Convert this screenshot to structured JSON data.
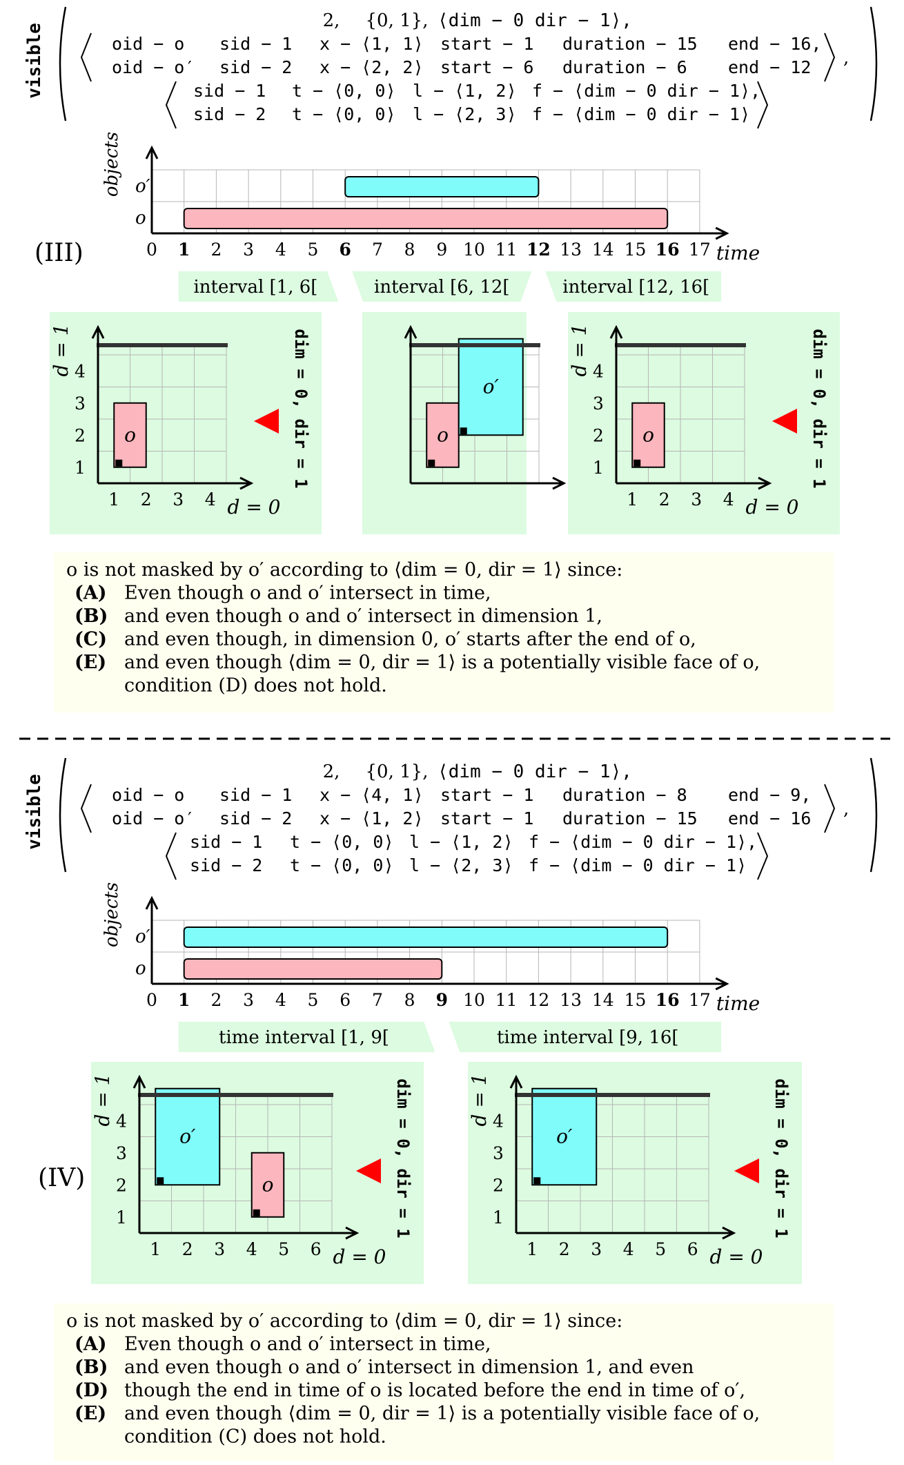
{
  "colors": {
    "o": "#fcb6bd",
    "o_prime": "#80fdfb",
    "green_bg": "#dcfbe0",
    "explanation_bg": "#fffff0",
    "arrow": "#ff0000",
    "grid": "#b5b5b5"
  },
  "panels": [
    {
      "id": "III",
      "label": "(III)",
      "constraint": {
        "keyword": "visible",
        "header": {
          "k": "2,",
          "dims": "{0, 1},",
          "face": "⟨dim − 0 dir − 1⟩,"
        },
        "objects": [
          {
            "oid": "oid − o",
            "sid": "sid − 1",
            "x": "x − ⟨1, 1⟩",
            "start": "start − 1",
            "duration": "duration − 15",
            "end": "end − 16,"
          },
          {
            "oid": "oid − o′",
            "sid": "sid − 2",
            "x": "x − ⟨2, 2⟩",
            "start": "start − 6",
            "duration": "duration − 6",
            "end": "end − 12"
          }
        ],
        "shapes": [
          {
            "sid": "sid − 1",
            "t": "t − ⟨0, 0⟩",
            "l": "l − ⟨1, 2⟩",
            "f": "f − ⟨dim − 0 dir − 1⟩,"
          },
          {
            "sid": "sid − 2",
            "t": "t − ⟨0, 0⟩",
            "l": "l − ⟨2, 3⟩",
            "f": "f − ⟨dim − 0 dir − 1⟩"
          }
        ],
        "trailing_comma": ","
      },
      "timeline": {
        "ylabel": "objects",
        "xlabel": "time",
        "ticks": [
          "0",
          "1",
          "2",
          "3",
          "4",
          "5",
          "6",
          "7",
          "8",
          "9",
          "10",
          "11",
          "12",
          "13",
          "14",
          "15",
          "16",
          "17"
        ],
        "bold_ticks": [
          1,
          6,
          12,
          16
        ],
        "rows": [
          {
            "label": "o",
            "start": 1,
            "end": 16,
            "object": "o"
          },
          {
            "label": "o′",
            "start": 6,
            "end": 12,
            "object": "o_prime"
          }
        ],
        "intervals": [
          {
            "label": "interval [1, 6[",
            "from": 1,
            "to": 6
          },
          {
            "label": "interval [6, 12[",
            "from": 6,
            "to": 12
          },
          {
            "label": "interval [12, 16[",
            "from": 12,
            "to": 16
          }
        ]
      },
      "grids": [
        {
          "xlabel": "d = 0",
          "ylabel": "d = 1",
          "xticks": [
            "1",
            "2",
            "3",
            "4"
          ],
          "yticks": [
            "1",
            "2",
            "3",
            "4"
          ],
          "side_label": "dim = 0, dir = 1",
          "show_arrow": true,
          "rects": [
            {
              "label": "o",
              "x": 1,
              "y": 1,
              "w": 1,
              "h": 2,
              "object": "o"
            }
          ]
        },
        {
          "xlabel": "",
          "ylabel": "",
          "xticks": [],
          "yticks": [],
          "side_label": "",
          "show_arrow": false,
          "rects": [
            {
              "label": "o",
              "x": 1,
              "y": 1,
              "w": 1,
              "h": 2,
              "object": "o"
            },
            {
              "label": "o′",
              "x": 2,
              "y": 2,
              "w": 2,
              "h": 3,
              "object": "o_prime"
            }
          ]
        },
        {
          "xlabel": "d = 0",
          "ylabel": "d = 1",
          "xticks": [
            "1",
            "2",
            "3",
            "4"
          ],
          "yticks": [
            "1",
            "2",
            "3",
            "4"
          ],
          "side_label": "dim = 0, dir = 1",
          "show_arrow": true,
          "rects": [
            {
              "label": "o",
              "x": 1,
              "y": 1,
              "w": 1,
              "h": 2,
              "object": "o"
            }
          ]
        }
      ],
      "explanation": {
        "intro": "o is not masked by o′ according to ⟨dim = 0, dir = 1⟩ since:",
        "items": [
          {
            "tag": "(A)",
            "text": "Even though o and o′ intersect in time,"
          },
          {
            "tag": "(B)",
            "text": "and even though o and o′ intersect in dimension 1,"
          },
          {
            "tag": "(C)",
            "text": "and even though, in dimension 0, o′ starts after the end of o,"
          },
          {
            "tag": "(E)",
            "text": "and even though ⟨dim = 0, dir = 1⟩ is a potentially visible face of o,"
          },
          {
            "tag": "",
            "text": "condition (D) does not hold."
          }
        ]
      }
    },
    {
      "id": "IV",
      "label": "(IV)",
      "constraint": {
        "keyword": "visible",
        "header": {
          "k": "2,",
          "dims": "{0, 1},",
          "face": "⟨dim − 0 dir − 1⟩,"
        },
        "objects": [
          {
            "oid": "oid − o",
            "sid": "sid − 1",
            "x": "x − ⟨4, 1⟩",
            "start": "start − 1",
            "duration": "duration − 8",
            "end": "end − 9,"
          },
          {
            "oid": "oid − o′",
            "sid": "sid − 2",
            "x": "x − ⟨1, 2⟩",
            "start": "start − 1",
            "duration": "duration − 15",
            "end": "end − 16"
          }
        ],
        "shapes": [
          {
            "sid": "sid − 1",
            "t": "t − ⟨0, 0⟩",
            "l": "l − ⟨1, 2⟩",
            "f": "f − ⟨dim − 0 dir − 1⟩,"
          },
          {
            "sid": "sid − 2",
            "t": "t − ⟨0, 0⟩",
            "l": "l − ⟨2, 3⟩",
            "f": "f − ⟨dim − 0 dir − 1⟩"
          }
        ],
        "trailing_comma": ","
      },
      "timeline": {
        "ylabel": "objects",
        "xlabel": "time",
        "ticks": [
          "0",
          "1",
          "2",
          "3",
          "4",
          "5",
          "6",
          "7",
          "8",
          "9",
          "10",
          "11",
          "12",
          "13",
          "14",
          "15",
          "16",
          "17"
        ],
        "bold_ticks": [
          1,
          9,
          16
        ],
        "rows": [
          {
            "label": "o",
            "start": 1,
            "end": 9,
            "object": "o"
          },
          {
            "label": "o′",
            "start": 1,
            "end": 16,
            "object": "o_prime"
          }
        ],
        "intervals": [
          {
            "label": "time interval [1, 9[",
            "from": 1,
            "to": 9
          },
          {
            "label": "time interval [9, 16[",
            "from": 9,
            "to": 16
          }
        ]
      },
      "grids": [
        {
          "xlabel": "d = 0",
          "ylabel": "d = 1",
          "xticks": [
            "1",
            "2",
            "3",
            "4",
            "5",
            "6"
          ],
          "yticks": [
            "1",
            "2",
            "3",
            "4"
          ],
          "side_label": "dim = 0, dir = 1",
          "show_arrow": true,
          "rects": [
            {
              "label": "o′",
              "x": 1,
              "y": 2,
              "w": 2,
              "h": 3,
              "object": "o_prime"
            },
            {
              "label": "o",
              "x": 4,
              "y": 1,
              "w": 1,
              "h": 2,
              "object": "o"
            }
          ]
        },
        {
          "xlabel": "d = 0",
          "ylabel": "d = 1",
          "xticks": [
            "1",
            "2",
            "3",
            "4",
            "5",
            "6"
          ],
          "yticks": [
            "1",
            "2",
            "3",
            "4"
          ],
          "side_label": "dim = 0, dir = 1",
          "show_arrow": true,
          "rects": [
            {
              "label": "o′",
              "x": 1,
              "y": 2,
              "w": 2,
              "h": 3,
              "object": "o_prime"
            }
          ]
        }
      ],
      "explanation": {
        "intro": "o is not masked by o′ according to ⟨dim = 0, dir = 1⟩ since:",
        "items": [
          {
            "tag": "(A)",
            "text": "Even though o and o′ intersect in time,"
          },
          {
            "tag": "(B)",
            "text": "and even though o and o′ intersect in dimension 1, and even"
          },
          {
            "tag": "(D)",
            "text": "though the end in time of o is located before the end in time of o′,"
          },
          {
            "tag": "(E)",
            "text": "and even though ⟨dim = 0, dir = 1⟩ is a potentially visible face of o,"
          },
          {
            "tag": "",
            "text": "condition (C) does not hold."
          }
        ]
      }
    }
  ]
}
